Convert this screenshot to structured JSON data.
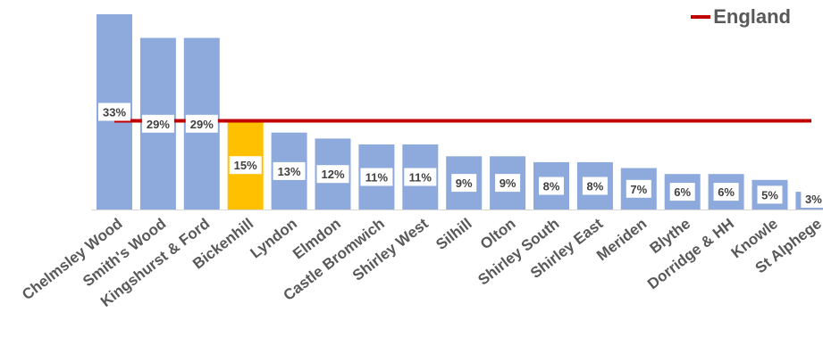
{
  "chart_data": {
    "type": "bar",
    "categories": [
      "Chelmsley Wood",
      "Smith's Wood",
      "Kingshurst & Ford",
      "Bickenhill",
      "Lyndon",
      "Elmdon",
      "Castle Bromwich",
      "Shirley West",
      "Silhill",
      "Olton",
      "Shirley South",
      "Shirley East",
      "Meriden",
      "Blythe",
      "Dorridge & HH",
      "Knowle",
      "St Alphege"
    ],
    "values": [
      33,
      29,
      29,
      15,
      13,
      12,
      11,
      11,
      9,
      9,
      8,
      8,
      7,
      6,
      6,
      5,
      3
    ],
    "data_labels": [
      "33%",
      "29%",
      "29%",
      "15%",
      "13%",
      "12%",
      "11%",
      "11%",
      "9%",
      "9%",
      "8%",
      "8%",
      "7%",
      "6%",
      "6%",
      "5%",
      "3%"
    ],
    "highlight_category": "Bickenhill",
    "reference_line": {
      "name": "England",
      "value": 15
    },
    "ylim": [
      0,
      33
    ],
    "legend_position": "top-right",
    "grid": false,
    "colors": {
      "bar": "#8eaadc",
      "highlight": "#ffc000",
      "reference": "#c00000"
    }
  },
  "legend": {
    "label": "England"
  }
}
